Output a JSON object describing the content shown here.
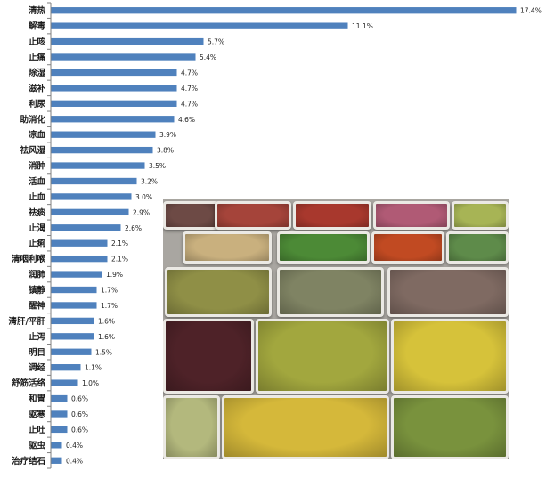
{
  "chart_data": {
    "type": "bar",
    "orientation": "horizontal",
    "title": "",
    "xlabel": "",
    "ylabel": "",
    "grid": false,
    "bar_color": "#4f81bd",
    "categories": [
      "清热",
      "解毒",
      "止咳",
      "止痛",
      "除湿",
      "滋补",
      "利尿",
      "助消化",
      "凉血",
      "祛风湿",
      "消肿",
      "活血",
      "止血",
      "祛痰",
      "止渴",
      "止痢",
      "清咽利喉",
      "润肺",
      "镇静",
      "醒神",
      "清肝/平肝",
      "止泻",
      "明目",
      "调经",
      "舒筋活络",
      "和胃",
      "驱寒",
      "止吐",
      "驱虫",
      "治疗结石"
    ],
    "values": [
      17.4,
      11.1,
      5.7,
      5.4,
      4.7,
      4.7,
      4.7,
      4.6,
      3.9,
      3.8,
      3.5,
      3.2,
      3.0,
      2.9,
      2.6,
      2.1,
      2.1,
      1.9,
      1.7,
      1.7,
      1.6,
      1.6,
      1.5,
      1.1,
      1.0,
      0.6,
      0.6,
      0.6,
      0.4,
      0.4
    ],
    "value_labels": [
      "17.4%",
      "11.1%",
      "5.7%",
      "5.4%",
      "4.7%",
      "4.7%",
      "4.7%",
      "4.6%",
      "3.9%",
      "3.8%",
      "3.5%",
      "3.2%",
      "3.0%",
      "2.9%",
      "2.6%",
      "2.1%",
      "2.1%",
      "1.9%",
      "1.7%",
      "1.7%",
      "1.6%",
      "1.6%",
      "1.5%",
      "1.1%",
      "1.0%",
      "0.6%",
      "0.6%",
      "0.6%",
      "0.4%",
      "0.4%"
    ],
    "xlim": [
      0,
      18
    ]
  },
  "photo": {
    "subject": "trays of dried herbs",
    "background_color": "#a9a6a1",
    "tray_colors": [
      "#6d4a45",
      "#a5443a",
      "#a8382d",
      "#b05a75",
      "#a7b455",
      "#c9b07e",
      "#4c8a36",
      "#c14a22",
      "#5e8b4a",
      "#8f8f46",
      "#7f8363",
      "#7f6a62",
      "#4e2228",
      "#a2a73e",
      "#d6c23a",
      "#b3b87d",
      "#d5b83a",
      "#79923d"
    ]
  }
}
